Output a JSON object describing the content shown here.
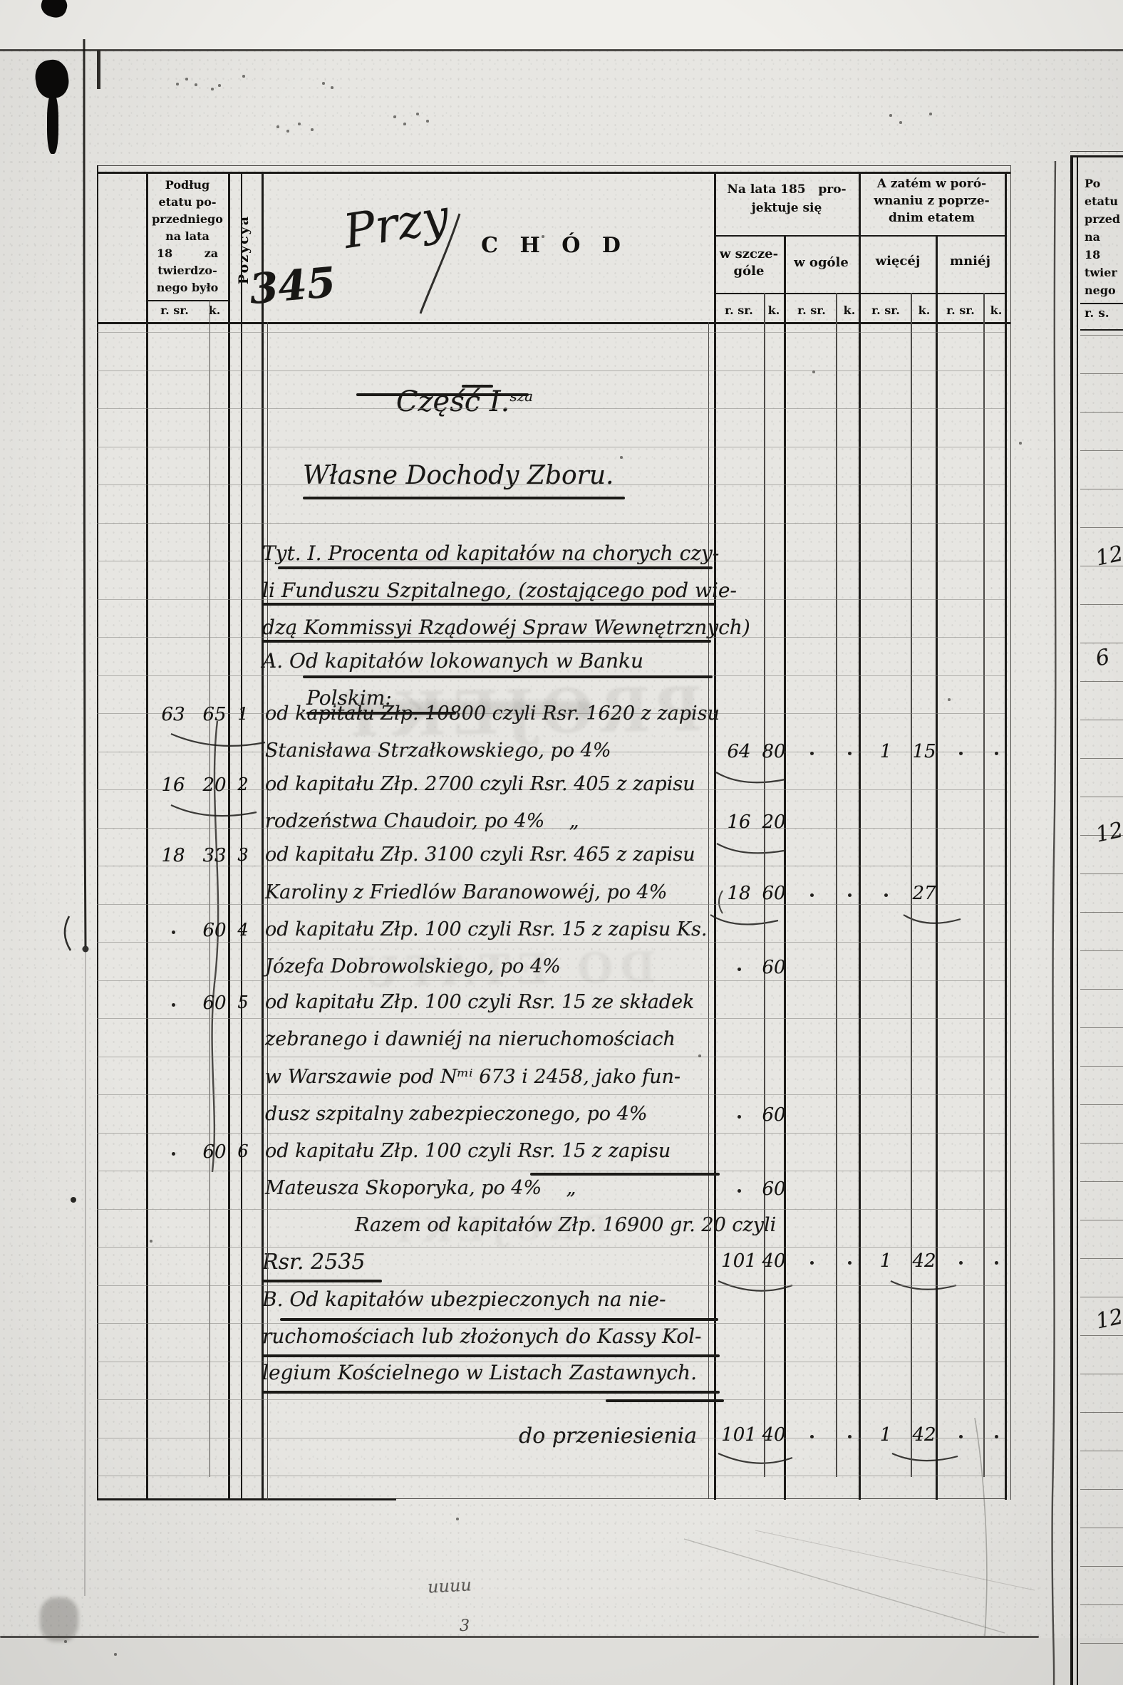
{
  "page_number": "345",
  "title": {
    "handwritten": "Przy",
    "printed": "C H Ó D"
  },
  "header": {
    "prev_etat": {
      "lines": [
        "Podług",
        "etatu po-",
        "przedniego",
        "na lata",
        "18        za",
        "twierdzo-",
        "nego było"
      ],
      "unit_r": "r. sr.",
      "unit_k": "k."
    },
    "pozycya": "Pozycya",
    "projected": {
      "title_lines": [
        "Na lata 185   pro-",
        "jektuje się"
      ],
      "col_szczegole_lines": [
        "w szcze-",
        "góle"
      ],
      "col_ogole": "w ogóle"
    },
    "compare": {
      "title_lines": [
        "A zatém w poró-",
        "wnaniu z poprze-",
        "dnim etatem"
      ],
      "col_wiecej": "więcéj",
      "col_mniej": "mniéj"
    },
    "unit_r": "r. sr.",
    "unit_k": "k."
  },
  "body": {
    "part_heading": "Część I.",
    "part_heading_sup": "sza",
    "section_heading": "Własne Dochody Zboru.",
    "tyt_heading_lines": [
      "Tyt. I. Procenta od kapitałów na chorych czy-",
      "li Funduszu Szpitalnego, (zostającego pod wie-",
      "dzą Kommissyi Rządowéj Spraw Wewnętrznych)",
      "A. Od kapitałów lokowanych w Banku",
      "Polskim:"
    ],
    "entries": [
      {
        "pozycya": "1",
        "prev": [
          "63",
          "65"
        ],
        "lines": [
          "od kapitału Złp. 10800 czyli Rsr. 1620 z zapisu",
          "Stanisława Strzałkowskiego, po 4%"
        ],
        "cells": [
          "64",
          "80",
          ".",
          ".",
          "1",
          "15",
          ".",
          "."
        ]
      },
      {
        "pozycya": "2",
        "prev": [
          "16",
          "20"
        ],
        "lines": [
          "od kapitału Złp. 2700 czyli Rsr. 405 z zapisu",
          "rodzeństwa Chaudoir, po 4%    „"
        ],
        "cells": [
          "16",
          "20",
          "",
          "",
          "",
          "",
          "",
          ""
        ]
      },
      {
        "pozycya": "3",
        "prev": [
          "18",
          "33"
        ],
        "lines": [
          "od kapitału Złp. 3100 czyli Rsr. 465 z zapisu",
          "Karoliny z Friedlów Baranowowéj, po 4%"
        ],
        "cells": [
          "18",
          "60",
          ".",
          ".",
          ".",
          "27",
          "",
          ""
        ]
      },
      {
        "pozycya": "4",
        "prev": [
          ".",
          "60"
        ],
        "lines": [
          "od kapitału Złp. 100 czyli Rsr. 15 z zapisu Ks.",
          "Józefa Dobrowolskiego, po 4%"
        ],
        "cells": [
          ".",
          "60",
          "",
          "",
          "",
          "",
          "",
          ""
        ]
      },
      {
        "pozycya": "5",
        "prev": [
          ".",
          "60"
        ],
        "lines": [
          "od kapitału Złp. 100 czyli Rsr. 15 ze składek",
          "zebranego i dawniéj na nieruchomościach",
          "w Warszawie pod Nᵐⁱ 673 i 2458, jako fun-",
          "dusz szpitalny zabezpieczonego, po 4%"
        ],
        "cells": [
          ".",
          "60",
          "",
          "",
          "",
          "",
          "",
          ""
        ]
      },
      {
        "pozycya": "6",
        "prev": [
          ".",
          "60"
        ],
        "lines": [
          "od kapitału Złp. 100 czyli Rsr. 15 z zapisu",
          "Mateusza Skoporyka, po 4%    „"
        ],
        "cells": [
          ".",
          "60",
          "",
          "",
          "",
          "",
          "",
          ""
        ]
      }
    ],
    "razem_line1": "Razem od kapitałów Złp. 16900 gr. 20 czyli",
    "razem_line2": "Rsr. 2535",
    "razem_cells": [
      "101",
      "40",
      ".",
      ".",
      "1",
      "42",
      ".",
      "."
    ],
    "section_b_lines": [
      "B. Od kapitałów ubezpieczonych na nie-",
      "ruchomościach lub złożonych do Kassy Kol-",
      "legium Kościelnego w Listach Zastawnych."
    ],
    "carry_label": "do przeniesienia",
    "carry_cells": [
      "101",
      "40",
      ".",
      ".",
      "1",
      "42",
      ".",
      "."
    ]
  },
  "bleed_through_text": [
    "PROJEKT",
    "DO ETATU",
    "PROJEKT"
  ],
  "adjacent_page": {
    "header_lines": [
      "Po",
      "etatu",
      "przed",
      "na",
      "18",
      "twier",
      "nego"
    ],
    "unit": "r. s.",
    "partial_numbers": [
      "12",
      "6",
      "12",
      "12."
    ]
  },
  "annotations": {
    "scribble": "uuuu",
    "sheet_mark": "3"
  }
}
